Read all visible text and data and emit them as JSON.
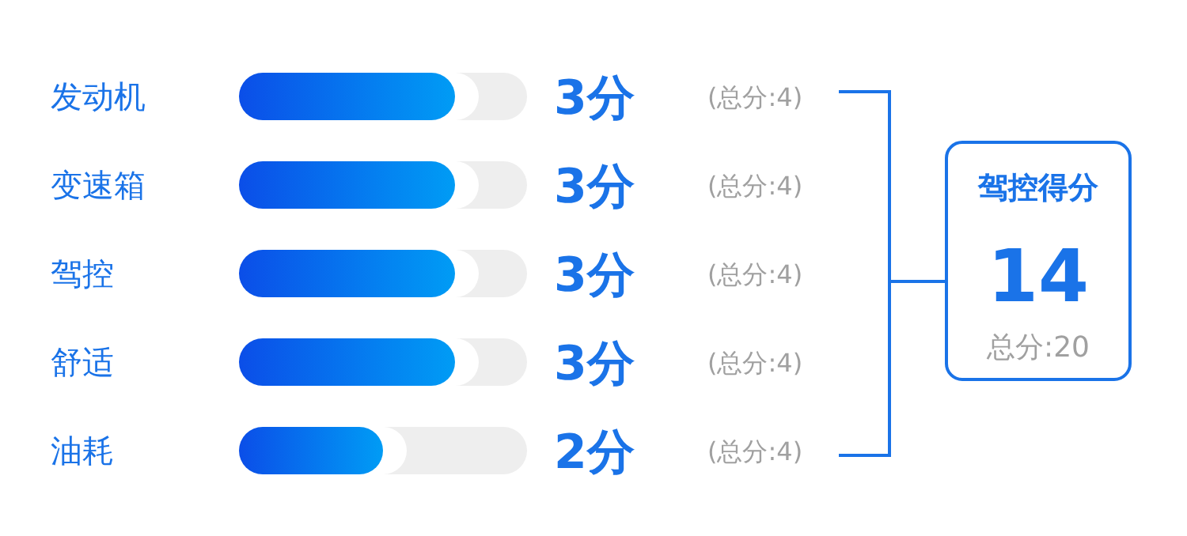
{
  "chart_data": {
    "type": "bar",
    "orientation": "horizontal",
    "categories": [
      "发动机",
      "变速箱",
      "驾控",
      "舒适",
      "油耗"
    ],
    "series": [
      {
        "color": "#0b4ee8",
        "values": [
          3,
          3,
          3,
          3,
          2
        ],
        "value_labels": [
          "3分",
          "3分",
          "3分",
          "3分",
          "2分"
        ]
      }
    ],
    "xlim": [
      0,
      4
    ],
    "tick_labels": "y",
    "annotations": [
      "(总分:4)",
      "(总分:4)",
      "(总分:4)",
      "(总分:4)",
      "(总分:4)",
      "驾控得分",
      "14",
      "总分:20"
    ]
  }
}
